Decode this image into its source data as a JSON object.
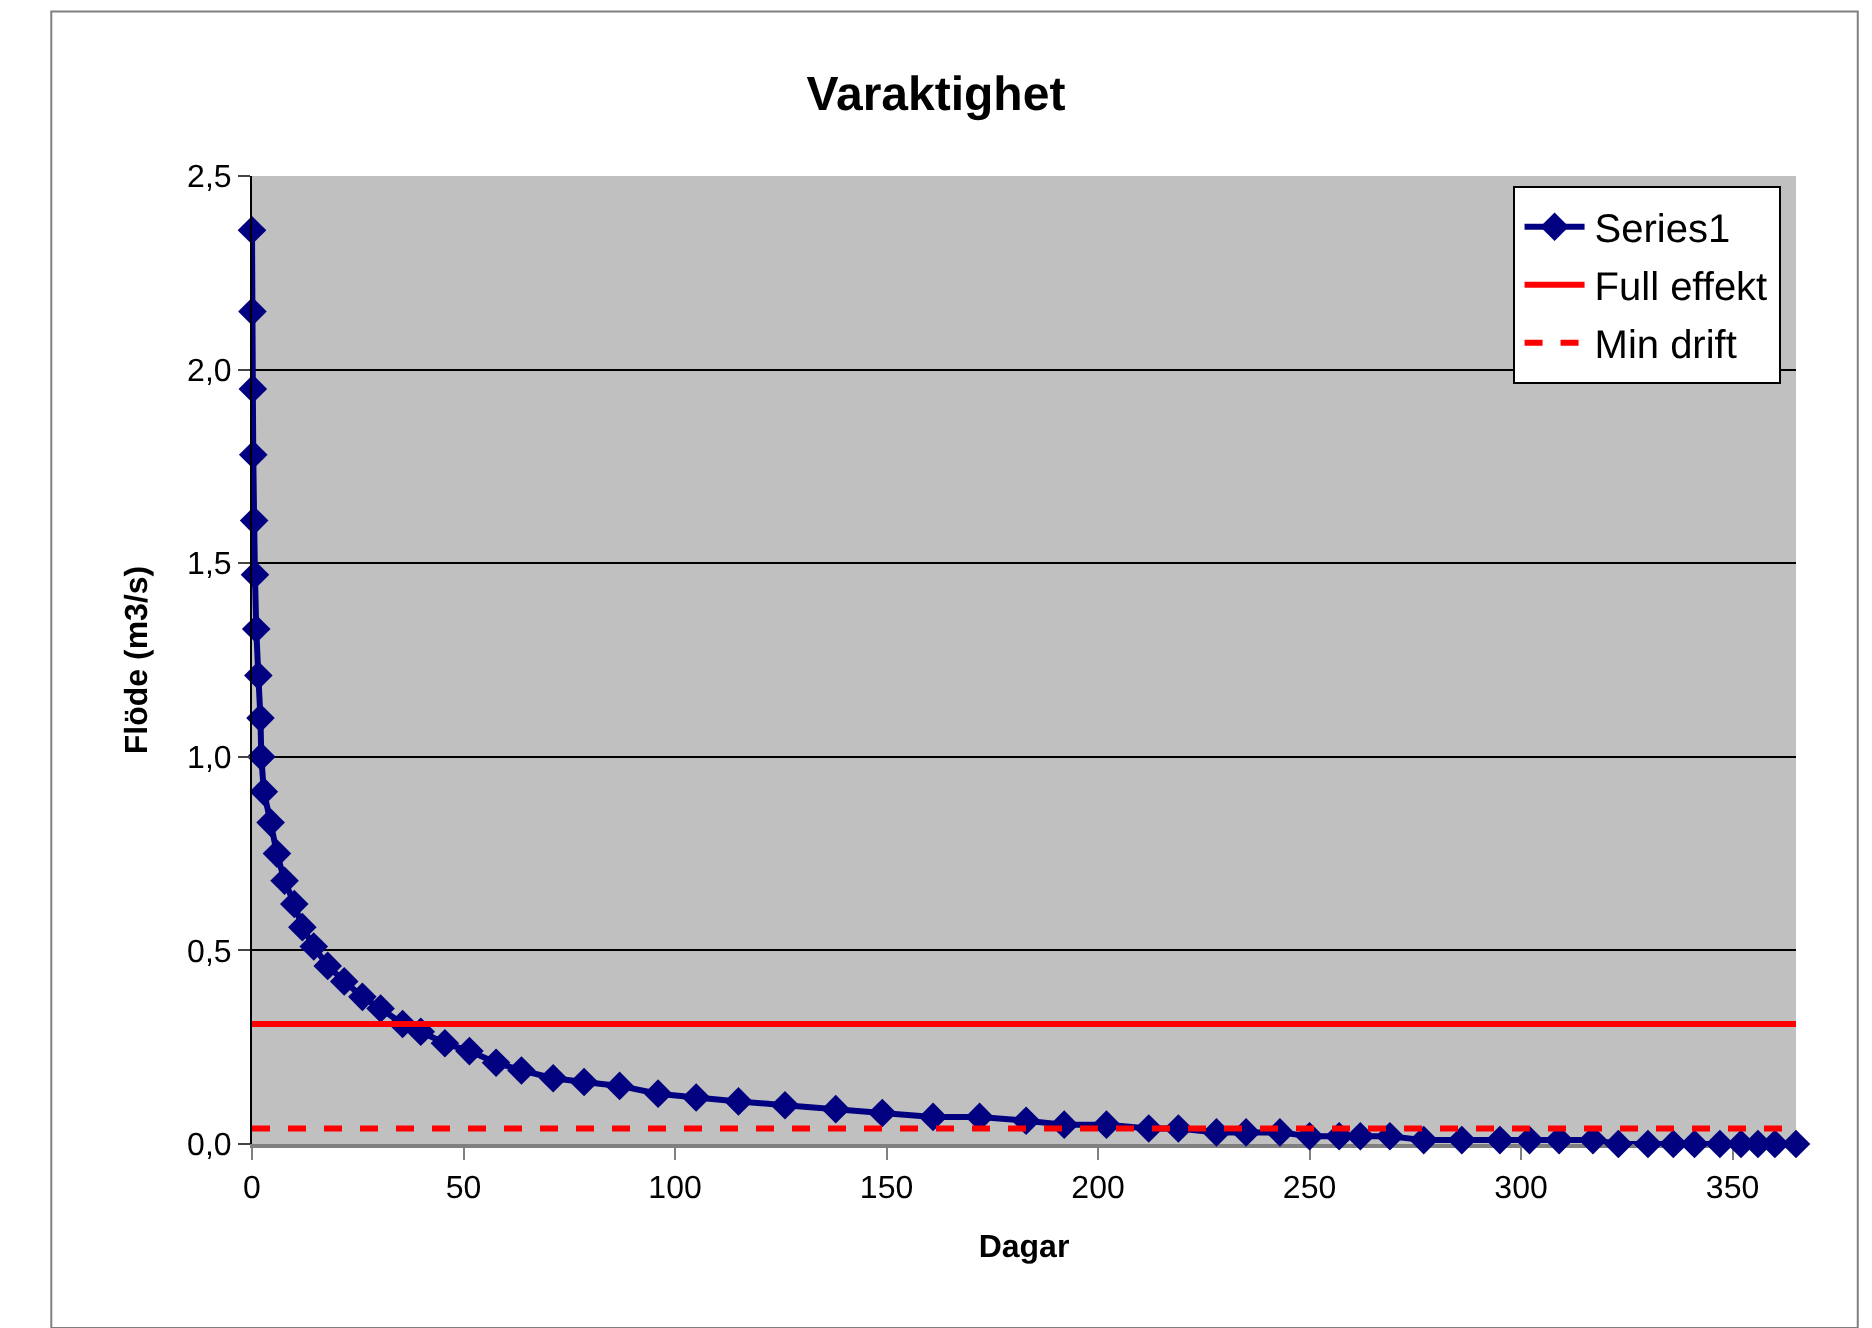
{
  "chart_data": {
    "type": "line",
    "title": "Varaktighet",
    "xlabel": "Dagar",
    "ylabel": "Flöde (m3/s)",
    "xlim": [
      0,
      365
    ],
    "xticks": [
      0,
      50,
      100,
      150,
      200,
      250,
      300,
      350
    ],
    "ylim": [
      0,
      2.5
    ],
    "yticks": [
      {
        "value": 0,
        "label": "0,0"
      },
      {
        "value": 0.5,
        "label": "0,5"
      },
      {
        "value": 1,
        "label": "1,0"
      },
      {
        "value": 1.5,
        "label": "1,5"
      },
      {
        "value": 2,
        "label": "2,0"
      },
      {
        "value": 2.5,
        "label": "2,5"
      }
    ],
    "grid": "y",
    "legend": "top right",
    "marker": "diamond",
    "series": [
      {
        "name": "Series1",
        "color": "#000080",
        "line_style": "solid",
        "x": [
          0,
          0.1,
          0.2,
          0.3,
          0.5,
          0.7,
          1,
          1.5,
          2,
          2.2,
          2.8,
          4.4,
          5.9,
          7.7,
          10,
          11.9,
          14.6,
          17.9,
          21.8,
          26.1,
          30.4,
          35.6,
          39.9,
          45.6,
          51.4,
          57.7,
          63.7,
          71.2,
          78.5,
          86.9,
          96,
          105,
          115,
          126,
          138,
          149,
          161,
          172,
          183,
          192,
          202,
          212,
          219,
          228,
          235,
          243,
          250,
          257,
          262,
          269,
          277,
          286,
          295,
          302,
          309,
          317,
          323,
          330,
          336,
          341,
          347,
          352,
          356,
          360,
          365
        ],
        "values": [
          2.36,
          2.15,
          1.95,
          1.78,
          1.61,
          1.47,
          1.33,
          1.21,
          1.1,
          1.0,
          0.91,
          0.83,
          0.75,
          0.68,
          0.62,
          0.56,
          0.51,
          0.46,
          0.42,
          0.38,
          0.35,
          0.31,
          0.29,
          0.26,
          0.24,
          0.21,
          0.19,
          0.17,
          0.16,
          0.15,
          0.13,
          0.12,
          0.11,
          0.1,
          0.09,
          0.08,
          0.07,
          0.07,
          0.06,
          0.05,
          0.05,
          0.04,
          0.04,
          0.03,
          0.03,
          0.03,
          0.02,
          0.02,
          0.02,
          0.02,
          0.01,
          0.01,
          0.01,
          0.01,
          0.01,
          0.01,
          0.0,
          0.0,
          0.0,
          0.0,
          0.0,
          0.0,
          0.0,
          0.0,
          0.0
        ]
      },
      {
        "name": "Full effekt",
        "type": "line",
        "color": "#ff0000",
        "line_style": "solid",
        "marker": "none",
        "x": [
          0,
          365
        ],
        "values": [
          0.31,
          0.31
        ]
      },
      {
        "name": "Min drift",
        "type": "line",
        "color": "#ff0000",
        "line_style": "dashed",
        "marker": "none",
        "x": [
          0,
          365
        ],
        "values": [
          0.04,
          0.04
        ]
      }
    ]
  }
}
